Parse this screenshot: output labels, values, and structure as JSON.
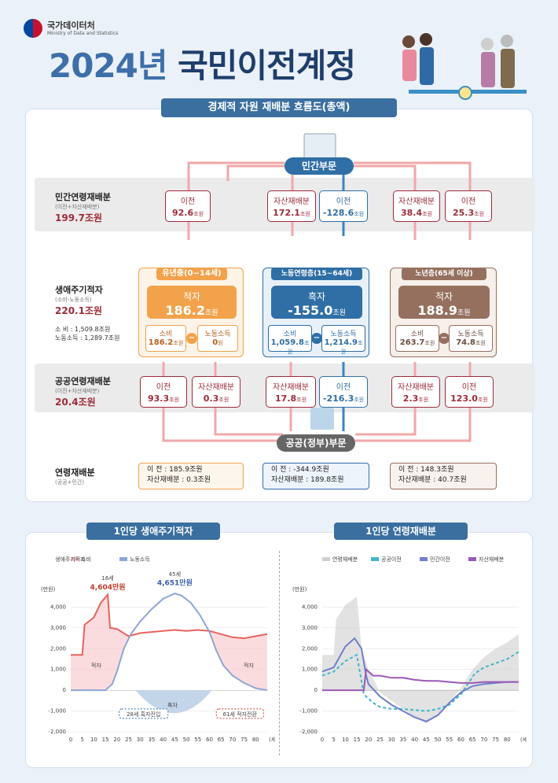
{
  "header": {
    "agency_name": "국가데이터처",
    "agency_name_en": "Ministry of Data and Statistics",
    "title_year": "2024년",
    "title_main": "국민이전계정"
  },
  "flow": {
    "section_title": "경제적 자원 재배분 흐름도(총액)",
    "private_sector": "민간부문",
    "public_sector": "공공(정부)부문",
    "unit": "조원",
    "rows": {
      "private": {
        "label": "민간연령재배분",
        "sub": "(이전+자산재배분)",
        "value": "199.7조원"
      },
      "lifecycle": {
        "label": "생애주기적자",
        "sub": "(소비-노동소득)",
        "value": "220.1조원",
        "consumption": "소    비 : 1,509.8조원",
        "labor_income": "노동소득 : 1,289.7조원"
      },
      "public": {
        "label": "공공연령재배분",
        "sub": "(이전+자산재배분)",
        "value": "20.4조원"
      },
      "age_realloc": {
        "label": "연령재배분",
        "sub": "(공공+민간)"
      }
    },
    "private_boxes": [
      {
        "label": "이전",
        "value": "92.6",
        "color": "red"
      },
      {
        "label": "자산재배분",
        "value": "172.1",
        "color": "red"
      },
      {
        "label": "이전",
        "value": "-128.6",
        "color": "blue"
      },
      {
        "label": "자산재배분",
        "value": "38.4",
        "color": "red"
      },
      {
        "label": "이전",
        "value": "25.3",
        "color": "red"
      }
    ],
    "public_boxes": [
      {
        "label": "이전",
        "value": "93.3",
        "color": "red"
      },
      {
        "label": "자산재배분",
        "value": "0.3",
        "color": "red"
      },
      {
        "label": "자산재배분",
        "value": "17.8",
        "color": "red"
      },
      {
        "label": "이전",
        "value": "-216.3",
        "color": "blue"
      },
      {
        "label": "자산재배분",
        "value": "2.3",
        "color": "red"
      },
      {
        "label": "이전",
        "value": "123.0",
        "color": "red"
      }
    ],
    "groups": [
      {
        "name": "유년층(0~14세)",
        "status": "적자",
        "value": "186.2",
        "consumption": "186.2",
        "labor": "0",
        "consumption_label": "소비",
        "labor_label": "노동소득",
        "color": "#f2a24b",
        "transfer_line": "이          전 : 185.9조원",
        "asset_line": "자산재배분 :    0.3조원"
      },
      {
        "name": "노동연령층(15~64세)",
        "status": "흑자",
        "value": "-155.0",
        "consumption": "1,059.8",
        "labor": "1,214.9",
        "consumption_label": "소비",
        "labor_label": "노동소득",
        "color": "#2f6fa5",
        "transfer_line": "이          전 : -344.9조원",
        "asset_line": "자산재배분 :  189.8조원"
      },
      {
        "name": "노년층(65세 이상)",
        "status": "적자",
        "value": "188.9",
        "consumption": "263.7",
        "labor": "74.8",
        "consumption_label": "소비",
        "labor_label": "노동소득",
        "color": "#96705f",
        "transfer_line": "이          전 : 148.3조원",
        "asset_line": "자산재배분 :   40.7조원"
      }
    ]
  },
  "charts": {
    "left_title": "1인당 생애주기적자",
    "right_title": "1인당 연령재배분",
    "unit_label": "(만원)",
    "age_unit": "(세)"
  },
  "chart_data": [
    {
      "type": "line",
      "title": "1인당 생애주기적자",
      "ylabel": "(만원)",
      "xlabel": "(세)",
      "ylim": [
        -2000,
        5000
      ],
      "xlim": [
        0,
        85
      ],
      "x_ticks": [
        0,
        5,
        10,
        15,
        20,
        25,
        30,
        35,
        40,
        45,
        50,
        55,
        60,
        65,
        70,
        75,
        80
      ],
      "y_ticks": [
        -2000,
        -1000,
        0,
        1000,
        2000,
        3000,
        4000
      ],
      "legend": [
        "생애주기적자",
        "소비",
        "노동소득"
      ],
      "annotations": [
        "16세 4,604만원",
        "45세 4,651만원",
        "적자",
        "흑자",
        "적자",
        "28세 흑자진입",
        "61세 적자전환"
      ],
      "ann": {
        "peak1_age": "16세",
        "peak1_val": "4,604만원",
        "peak2_age": "45세",
        "peak2_val": "4,651만원",
        "deficit": "적자",
        "surplus": "흑자",
        "entry": "28세 흑자진입",
        "exit": "61세 적자전환"
      },
      "series": [
        {
          "name": "소비",
          "color": "#e8635d",
          "points": [
            [
              0,
              1700
            ],
            [
              5,
              1700
            ],
            [
              6,
              3150
            ],
            [
              10,
              3500
            ],
            [
              13,
              4200
            ],
            [
              16,
              4604
            ],
            [
              17,
              3000
            ],
            [
              20,
              2950
            ],
            [
              25,
              2600
            ],
            [
              30,
              2750
            ],
            [
              35,
              2800
            ],
            [
              40,
              2850
            ],
            [
              45,
              2900
            ],
            [
              50,
              2850
            ],
            [
              55,
              2900
            ],
            [
              60,
              2850
            ],
            [
              65,
              2700
            ],
            [
              70,
              2550
            ],
            [
              75,
              2500
            ],
            [
              80,
              2600
            ],
            [
              85,
              2700
            ]
          ]
        },
        {
          "name": "노동소득",
          "color": "#8ea6d6",
          "points": [
            [
              0,
              0
            ],
            [
              15,
              0
            ],
            [
              18,
              300
            ],
            [
              20,
              900
            ],
            [
              23,
              2000
            ],
            [
              26,
              2700
            ],
            [
              30,
              3300
            ],
            [
              35,
              3900
            ],
            [
              40,
              4400
            ],
            [
              45,
              4651
            ],
            [
              48,
              4550
            ],
            [
              52,
              4200
            ],
            [
              56,
              3600
            ],
            [
              60,
              2800
            ],
            [
              63,
              1900
            ],
            [
              66,
              1200
            ],
            [
              70,
              700
            ],
            [
              75,
              350
            ],
            [
              80,
              100
            ],
            [
              85,
              0
            ]
          ]
        }
      ]
    },
    {
      "type": "line",
      "title": "1인당 연령재배분",
      "ylabel": "(만원)",
      "xlabel": "(세)",
      "ylim": [
        -2000,
        5000
      ],
      "xlim": [
        0,
        85
      ],
      "x_ticks": [
        0,
        5,
        10,
        15,
        20,
        25,
        30,
        35,
        40,
        45,
        50,
        55,
        60,
        65,
        70,
        75,
        80
      ],
      "y_ticks": [
        -2000,
        -1000,
        0,
        1000,
        2000,
        3000,
        4000
      ],
      "legend": [
        "연령재배분",
        "공공이전",
        "민간이전",
        "자산재배분"
      ],
      "series": [
        {
          "name": "연령재배분",
          "color": "#cfcfcf",
          "points": [
            [
              0,
              1700
            ],
            [
              5,
              1700
            ],
            [
              6,
              3400
            ],
            [
              10,
              4100
            ],
            [
              15,
              4500
            ],
            [
              17,
              2000
            ],
            [
              20,
              1000
            ],
            [
              25,
              -100
            ],
            [
              30,
              -500
            ],
            [
              35,
              -900
            ],
            [
              40,
              -1300
            ],
            [
              45,
              -1600
            ],
            [
              50,
              -1200
            ],
            [
              55,
              -600
            ],
            [
              60,
              100
            ],
            [
              65,
              1000
            ],
            [
              70,
              1600
            ],
            [
              75,
              2000
            ],
            [
              80,
              2300
            ],
            [
              85,
              2700
            ]
          ]
        },
        {
          "name": "공공이전",
          "color": "#3fb8c9",
          "points": [
            [
              0,
              700
            ],
            [
              5,
              900
            ],
            [
              10,
              1400
            ],
            [
              15,
              1700
            ],
            [
              18,
              -200
            ],
            [
              22,
              -600
            ],
            [
              25,
              -800
            ],
            [
              30,
              -900
            ],
            [
              35,
              -900
            ],
            [
              40,
              -950
            ],
            [
              45,
              -1000
            ],
            [
              50,
              -900
            ],
            [
              55,
              -700
            ],
            [
              60,
              -200
            ],
            [
              63,
              300
            ],
            [
              66,
              800
            ],
            [
              70,
              1100
            ],
            [
              75,
              1300
            ],
            [
              80,
              1500
            ],
            [
              85,
              1850
            ]
          ]
        },
        {
          "name": "민간이전",
          "color": "#6f7fcb",
          "points": [
            [
              0,
              900
            ],
            [
              5,
              1100
            ],
            [
              10,
              2100
            ],
            [
              14,
              2500
            ],
            [
              17,
              2000
            ],
            [
              19,
              700
            ],
            [
              20,
              300
            ],
            [
              25,
              -300
            ],
            [
              30,
              -700
            ],
            [
              35,
              -1000
            ],
            [
              40,
              -1300
            ],
            [
              45,
              -1500
            ],
            [
              50,
              -1200
            ],
            [
              55,
              -600
            ],
            [
              60,
              -100
            ],
            [
              65,
              200
            ],
            [
              70,
              300
            ],
            [
              75,
              350
            ],
            [
              80,
              400
            ],
            [
              85,
              400
            ]
          ]
        },
        {
          "name": "자산재배분",
          "color": "#9b59b6",
          "points": [
            [
              0,
              0
            ],
            [
              18,
              0
            ],
            [
              19,
              1000
            ],
            [
              22,
              700
            ],
            [
              25,
              700
            ],
            [
              30,
              600
            ],
            [
              35,
              600
            ],
            [
              40,
              500
            ],
            [
              45,
              450
            ],
            [
              50,
              450
            ],
            [
              55,
              400
            ],
            [
              60,
              350
            ],
            [
              65,
              350
            ],
            [
              70,
              400
            ],
            [
              75,
              400
            ],
            [
              80,
              400
            ],
            [
              85,
              400
            ]
          ]
        }
      ]
    }
  ]
}
